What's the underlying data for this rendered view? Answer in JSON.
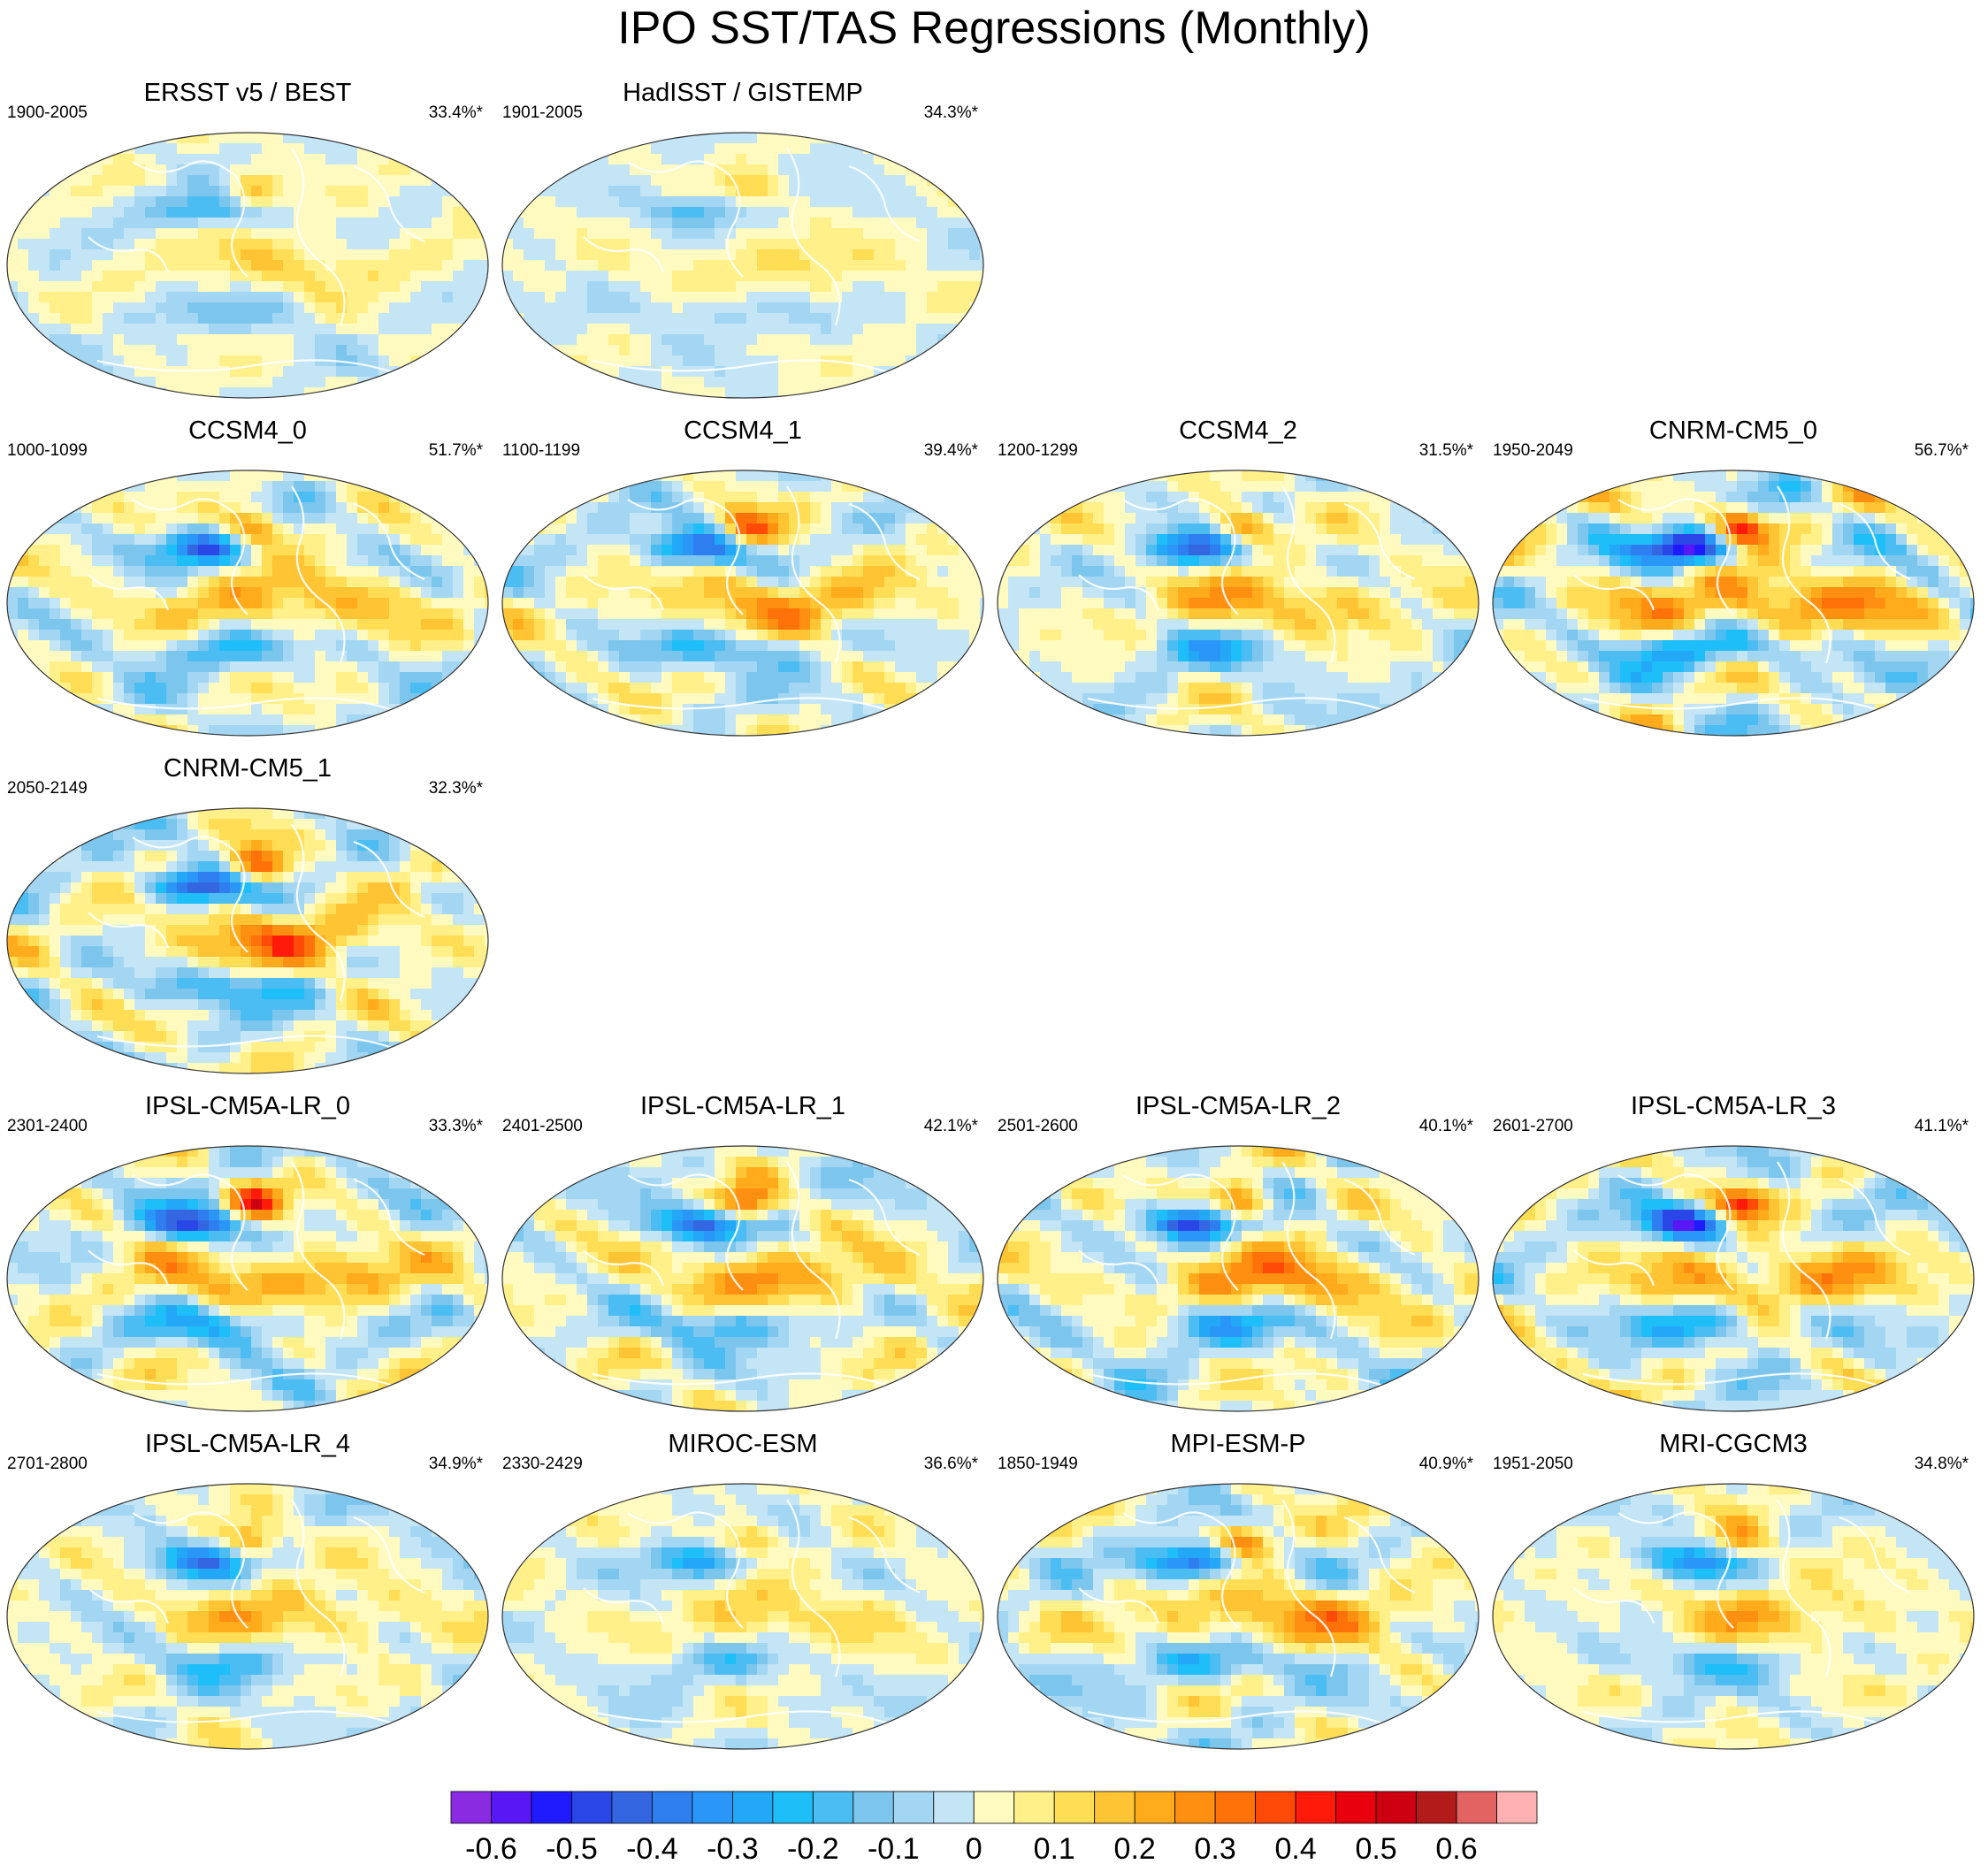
{
  "title": "IPO SST/TAS Regressions (Monthly)",
  "panels": [
    {
      "title": "ERSST v5 / BEST",
      "period": "1900-2005",
      "variance": "33.4%*",
      "row": 0,
      "col": 0,
      "seed": 11,
      "amp": 0.22
    },
    {
      "title": "HadISST / GISTEMP",
      "period": "1901-2005",
      "variance": "34.3%*",
      "row": 0,
      "col": 1,
      "seed": 23,
      "amp": 0.18
    },
    {
      "title": "CCSM4_0",
      "period": "1000-1099",
      "variance": "51.7%*",
      "row": 1,
      "col": 0,
      "seed": 31,
      "amp": 0.38
    },
    {
      "title": "CCSM4_1",
      "period": "1100-1199",
      "variance": "39.4%*",
      "row": 1,
      "col": 1,
      "seed": 43,
      "amp": 0.4
    },
    {
      "title": "CCSM4_2",
      "period": "1200-1299",
      "variance": "31.5%*",
      "row": 1,
      "col": 2,
      "seed": 57,
      "amp": 0.36
    },
    {
      "title": "CNRM-CM5_0",
      "period": "1950-2049",
      "variance": "56.7%*",
      "row": 1,
      "col": 3,
      "seed": 61,
      "amp": 0.55
    },
    {
      "title": "CNRM-CM5_1",
      "period": "2050-2149",
      "variance": "32.3%*",
      "row": 2,
      "col": 0,
      "seed": 73,
      "amp": 0.45
    },
    {
      "title": "IPSL-CM5A-LR_0",
      "period": "2301-2400",
      "variance": "33.3%*",
      "row": 3,
      "col": 0,
      "seed": 89,
      "amp": 0.45
    },
    {
      "title": "IPSL-CM5A-LR_1",
      "period": "2401-2500",
      "variance": "42.1%*",
      "row": 3,
      "col": 1,
      "seed": 97,
      "amp": 0.4
    },
    {
      "title": "IPSL-CM5A-LR_2",
      "period": "2501-2600",
      "variance": "40.1%*",
      "row": 3,
      "col": 2,
      "seed": 101,
      "amp": 0.45
    },
    {
      "title": "IPSL-CM5A-LR_3",
      "period": "2601-2700",
      "variance": "41.1%*",
      "row": 3,
      "col": 3,
      "seed": 113,
      "amp": 0.45
    },
    {
      "title": "IPSL-CM5A-LR_4",
      "period": "2701-2800",
      "variance": "34.9%*",
      "row": 4,
      "col": 0,
      "seed": 127,
      "amp": 0.32
    },
    {
      "title": "MIROC-ESM",
      "period": "2330-2429",
      "variance": "36.6%*",
      "row": 4,
      "col": 1,
      "seed": 131,
      "amp": 0.25
    },
    {
      "title": "MPI-ESM-P",
      "period": "1850-1949",
      "variance": "40.9%*",
      "row": 4,
      "col": 2,
      "seed": 139,
      "amp": 0.42
    },
    {
      "title": "MRI-CGCM3",
      "period": "1951-2050",
      "variance": "34.8%*",
      "row": 4,
      "col": 3,
      "seed": 149,
      "amp": 0.3
    }
  ],
  "chart_data": {
    "type": "heatmap",
    "title": "IPO SST/TAS Regressions (Monthly)",
    "projection": "Robinson (global, Pacific-centered)",
    "colorbar": {
      "levels": [
        -0.65,
        -0.6,
        -0.55,
        -0.5,
        -0.45,
        -0.4,
        -0.35,
        -0.3,
        -0.25,
        -0.2,
        -0.15,
        -0.1,
        -0.05,
        0,
        0.05,
        0.1,
        0.15,
        0.2,
        0.25,
        0.3,
        0.35,
        0.4,
        0.45,
        0.5,
        0.55,
        0.6,
        0.65
      ],
      "colors": [
        "#8a2be2",
        "#5a17f5",
        "#1f1aff",
        "#2a46e6",
        "#3366e0",
        "#2e7eef",
        "#2a96f8",
        "#22a8f7",
        "#1ebef8",
        "#4cbdf2",
        "#7cc6ee",
        "#a3d6f2",
        "#c3e5f6",
        "#fffac0",
        "#fff08a",
        "#ffdd55",
        "#ffc433",
        "#ffab1c",
        "#ff8f10",
        "#ff720a",
        "#ff4a08",
        "#ff1a0a",
        "#e8000c",
        "#cc0010",
        "#b31b1b",
        "#e36262",
        "#ffb0b0"
      ],
      "tick_labels": [
        "-0.6",
        "-0.5",
        "-0.4",
        "-0.3",
        "-0.2",
        "-0.1",
        "0",
        "0.1",
        "0.2",
        "0.3",
        "0.4",
        "0.5",
        "0.6"
      ]
    }
  }
}
